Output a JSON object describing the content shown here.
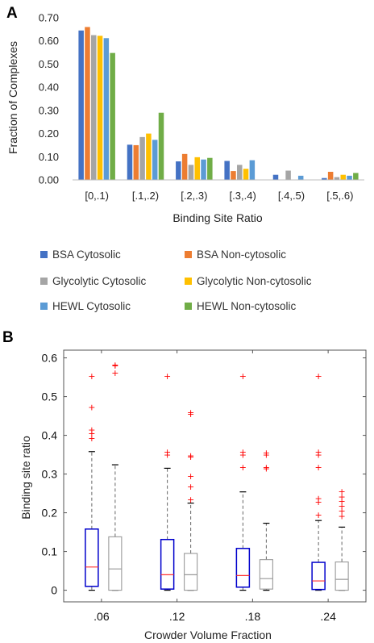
{
  "panels": {
    "a_letter": "A",
    "b_letter": "B"
  },
  "chart_data": [
    {
      "type": "bar",
      "panel": "A",
      "xlabel": "Binding Site Ratio",
      "ylabel": "Fraction of Complexes",
      "ylim": [
        0,
        0.7
      ],
      "yticks": [
        "0.00",
        "0.10",
        "0.20",
        "0.30",
        "0.40",
        "0.50",
        "0.60",
        "0.70"
      ],
      "grid": false,
      "legend_position": "bottom",
      "categories": [
        "[0,.1)",
        "[.1,.2)",
        "[.2,.3)",
        "[.3,.4)",
        "[.4,.5)",
        "[.5,.6)"
      ],
      "series": [
        {
          "name": "BSA Cytosolic",
          "color": "#4472C4",
          "values": [
            0.645,
            0.152,
            0.08,
            0.082,
            0.022,
            0.008
          ]
        },
        {
          "name": "BSA Non-cytosolic",
          "color": "#ED7D31",
          "values": [
            0.66,
            0.15,
            0.112,
            0.038,
            0.0,
            0.035
          ]
        },
        {
          "name": "Glycolytic Cytosolic",
          "color": "#A5A5A5",
          "values": [
            0.625,
            0.185,
            0.065,
            0.065,
            0.04,
            0.012
          ]
        },
        {
          "name": "Glycolytic Non-cytosolic",
          "color": "#FFC000",
          "values": [
            0.622,
            0.2,
            0.098,
            0.048,
            0.0,
            0.022
          ]
        },
        {
          "name": "HEWL Cytosolic",
          "color": "#5B9BD5",
          "values": [
            0.612,
            0.173,
            0.088,
            0.085,
            0.018,
            0.018
          ]
        },
        {
          "name": "HEWL Non-cytosolic",
          "color": "#70AD47",
          "values": [
            0.548,
            0.29,
            0.095,
            0.0,
            0.0,
            0.03
          ]
        }
      ]
    },
    {
      "type": "box",
      "panel": "B",
      "xlabel": "Crowder Volume Fraction",
      "ylabel": "Binding site ratio",
      "ylim": [
        -0.03,
        0.62
      ],
      "yticks": [
        "0",
        "0.1",
        "0.2",
        "0.3",
        "0.4",
        "0.5",
        "0.6"
      ],
      "categories": [
        ".06",
        ".12",
        ".18",
        ".24"
      ],
      "colors": {
        "cytosolic": "#0000CC",
        "non_cytosolic": "#999999",
        "median_cytosolic": "#FF3333",
        "median_non_cytosolic": "#999999",
        "outlier": "#FF0000",
        "whisker": "#666666"
      },
      "groups": [
        {
          "cytosolic": {
            "q1": 0.01,
            "median": 0.06,
            "q3": 0.158,
            "lower": 0.0,
            "upper": 0.358,
            "outliers": [
              0.393,
              0.405,
              0.415,
              0.473,
              0.553
            ]
          },
          "non_cytosolic": {
            "q1": 0.0,
            "median": 0.055,
            "q3": 0.138,
            "lower": 0.0,
            "upper": 0.324,
            "outliers": [
              0.562,
              0.58,
              0.583
            ]
          }
        },
        {
          "cytosolic": {
            "q1": 0.003,
            "median": 0.04,
            "q3": 0.131,
            "lower": 0.0,
            "upper": 0.315,
            "outliers": [
              0.35,
              0.358,
              0.553
            ]
          },
          "non_cytosolic": {
            "q1": 0.0,
            "median": 0.04,
            "q3": 0.095,
            "lower": 0.0,
            "upper": 0.225,
            "outliers": [
              0.235,
              0.268,
              0.295,
              0.345,
              0.348,
              0.455,
              0.46
            ]
          }
        },
        {
          "cytosolic": {
            "q1": 0.008,
            "median": 0.038,
            "q3": 0.108,
            "lower": 0.0,
            "upper": 0.254,
            "outliers": [
              0.318,
              0.35,
              0.358,
              0.553
            ]
          },
          "non_cytosolic": {
            "q1": 0.003,
            "median": 0.03,
            "q3": 0.079,
            "lower": 0.0,
            "upper": 0.173,
            "outliers": [
              0.315,
              0.318,
              0.35,
              0.355
            ]
          }
        },
        {
          "cytosolic": {
            "q1": 0.002,
            "median": 0.024,
            "q3": 0.072,
            "lower": 0.0,
            "upper": 0.18,
            "outliers": [
              0.195,
              0.228,
              0.238,
              0.318,
              0.35,
              0.358,
              0.553
            ]
          },
          "non_cytosolic": {
            "q1": 0.0,
            "median": 0.028,
            "q3": 0.073,
            "lower": 0.0,
            "upper": 0.163,
            "outliers": [
              0.192,
              0.205,
              0.218,
              0.23,
              0.242,
              0.255
            ]
          }
        }
      ]
    }
  ]
}
